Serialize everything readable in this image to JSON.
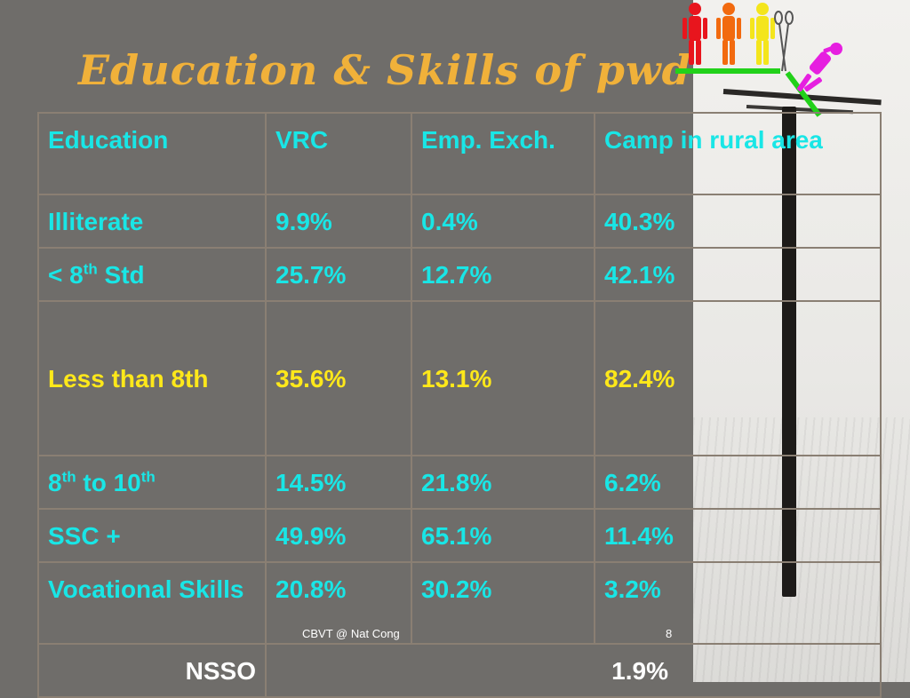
{
  "slide": {
    "title": "Education & Skills of pwd",
    "footer": "CBVT @ Nat Cong",
    "page_number": "8"
  },
  "table": {
    "header": [
      "Education",
      "VRC",
      "Emp. Exch.",
      "Camp in rural area"
    ],
    "rows": [
      {
        "education": "Illiterate",
        "vrc": "9.9%",
        "emp": "0.4%",
        "camp": "40.3%"
      },
      {
        "education_base": "< 8",
        "education_sup": "th",
        "education_tail": " Std",
        "vrc": "25.7%",
        "emp": "12.7%",
        "camp": "42.1%"
      },
      {
        "education": "Less than 8th",
        "vrc": "35.6%",
        "emp": "13.1%",
        "camp": "82.4%"
      },
      {
        "education_base": "8",
        "education_sup": "th",
        "education_mid": " to 10",
        "education_sup2": "th",
        "vrc": "14.5%",
        "emp": "21.8%",
        "camp": "6.2%"
      },
      {
        "education": "SSC +",
        "vrc": "49.9%",
        "emp": "65.1%",
        "camp": "11.4%"
      },
      {
        "education": "Vocational Skills",
        "vrc": "20.8%",
        "emp": "30.2%",
        "camp": "3.2%"
      }
    ],
    "nsso_row": {
      "label": "NSSO",
      "value": "1.9%"
    }
  },
  "colors": {
    "background": "#6f6d6a",
    "title": "#f0b13a",
    "cell_text": "#19e6e6",
    "highlight_text": "#ffe81a",
    "border": "#8a7f73"
  },
  "icons": {
    "logo": "people-group-with-scissors-logo"
  }
}
